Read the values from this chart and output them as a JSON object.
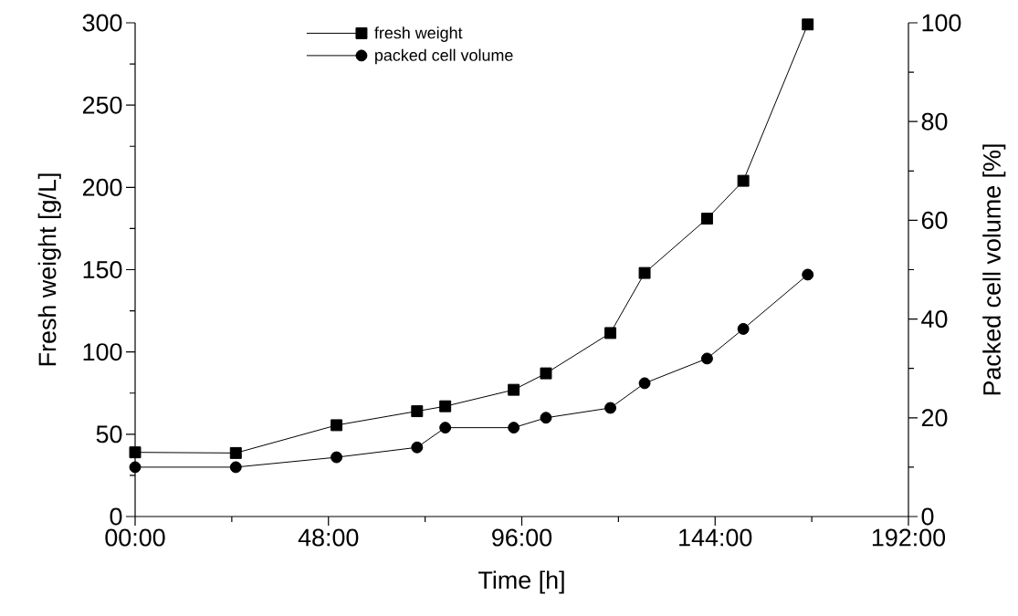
{
  "chart_data": {
    "type": "line",
    "xlabel": "Time [h]",
    "ylabel": "Fresh weight [g/L]",
    "y2label": "Packed cell volume [%]",
    "x": [
      0,
      25,
      50,
      70,
      77,
      94,
      102,
      118,
      126.5,
      142,
      151,
      167
    ],
    "series": [
      {
        "name": "fresh weight",
        "color": "#000000",
        "marker": "square",
        "values": [
          39,
          38.6,
          55.5,
          64,
          67,
          77,
          87,
          111.5,
          148,
          181,
          204,
          299
        ]
      },
      {
        "name": "packed cell volume",
        "color": "#000000",
        "marker": "circle",
        "axis": "y2",
        "values": [
          10,
          10,
          12,
          14,
          18,
          18,
          20,
          22,
          27,
          32,
          38,
          49
        ]
      }
    ],
    "xlim": [
      0,
      192
    ],
    "xticks": [
      {
        "value": 0,
        "label": "00:00"
      },
      {
        "value": 24,
        "label": null
      },
      {
        "value": 48,
        "label": "48:00"
      },
      {
        "value": 72,
        "label": null
      },
      {
        "value": 96,
        "label": "96:00"
      },
      {
        "value": 120,
        "label": null
      },
      {
        "value": 144,
        "label": "144:00"
      },
      {
        "value": 168,
        "label": null
      },
      {
        "value": 192,
        "label": "192:00"
      }
    ],
    "ylim": [
      0,
      300
    ],
    "yticks": [
      0,
      {
        "value": 25,
        "label": null
      },
      50,
      {
        "value": 75,
        "label": null
      },
      100,
      {
        "value": 125,
        "label": null
      },
      150,
      {
        "value": 175,
        "label": null
      },
      200,
      {
        "value": 225,
        "label": null
      },
      250,
      {
        "value": 275,
        "label": null
      },
      300
    ],
    "y2lim": [
      0,
      100
    ],
    "y2ticks": [
      0,
      {
        "value": 10,
        "label": null
      },
      20,
      {
        "value": 30,
        "label": null
      },
      40,
      {
        "value": 50,
        "label": null
      },
      60,
      {
        "value": 70,
        "label": null
      },
      80,
      {
        "value": 90,
        "label": null
      },
      100
    ],
    "legend": "top",
    "line_style": "solid",
    "grid": false
  }
}
